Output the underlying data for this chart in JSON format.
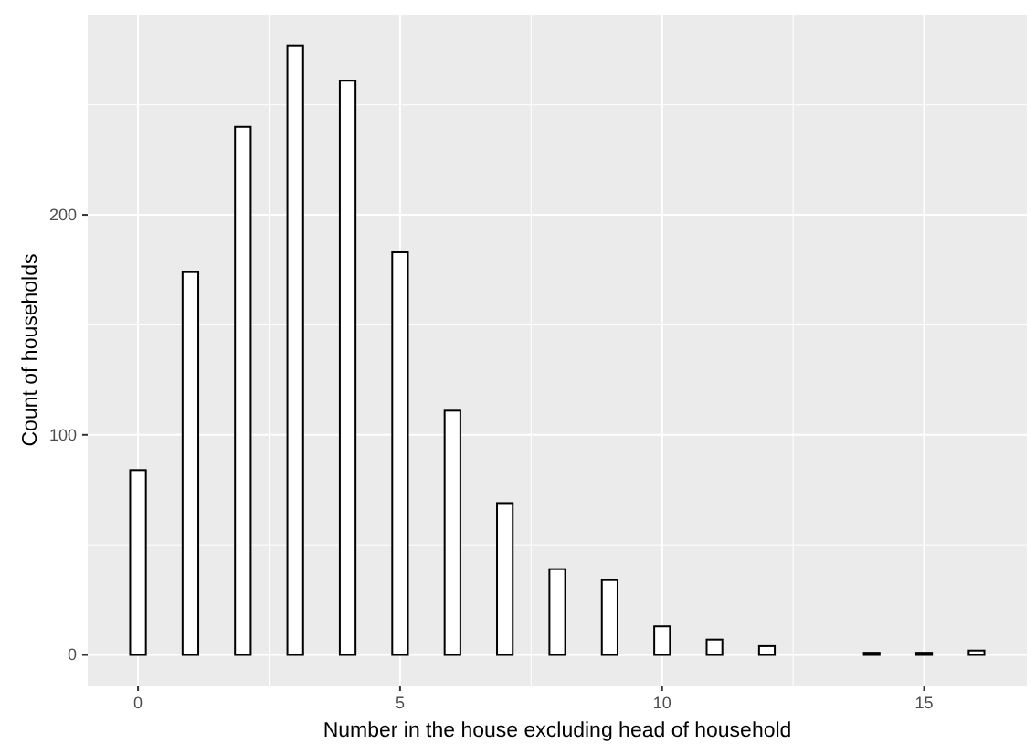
{
  "chart_data": {
    "type": "bar",
    "xlabel": "Number in the house excluding head of household",
    "ylabel": "Count of households",
    "x": [
      0,
      1,
      2,
      3,
      4,
      5,
      6,
      7,
      8,
      9,
      10,
      11,
      12,
      13,
      14,
      15,
      16
    ],
    "values": [
      84,
      174,
      240,
      277,
      261,
      183,
      111,
      69,
      39,
      34,
      13,
      7,
      4,
      0,
      1,
      1,
      2
    ],
    "color": "#ffffff",
    "xlim": [
      -0.96,
      16.96
    ],
    "xticks": [
      0,
      5,
      10,
      15
    ],
    "ylim": [
      -13.9,
      291
    ],
    "yticks": [
      0,
      100,
      200
    ],
    "grid": true
  }
}
